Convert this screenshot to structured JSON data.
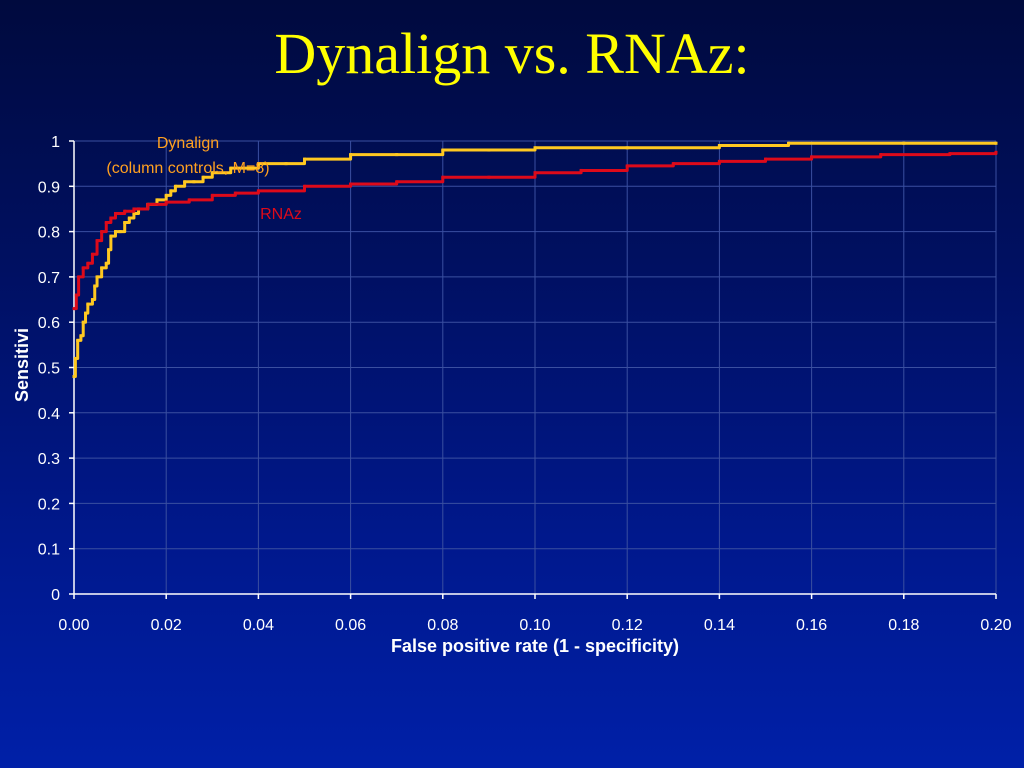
{
  "slide": {
    "title": "Dynalign vs. RNAz:"
  },
  "colors": {
    "background": "#00187a",
    "title": "#ffff00",
    "dynalign": "#ffc820",
    "rnaz": "#dd0a1a",
    "dynalign_label": "#ffa020",
    "grid": "#3a4fa0",
    "axis": "#ffffff"
  },
  "chart_data": {
    "type": "line",
    "xlabel": "False positive rate (1 - specificity)",
    "ylabel": "Sensitivi",
    "xlim": [
      0,
      0.2
    ],
    "ylim": [
      0,
      1
    ],
    "x_ticks": [
      "0.00",
      "0.02",
      "0.04",
      "0.06",
      "0.08",
      "0.10",
      "0.12",
      "0.14",
      "0.16",
      "0.18",
      "0.20"
    ],
    "y_ticks": [
      "0",
      "0.1",
      "0.2",
      "0.3",
      "0.4",
      "0.5",
      "0.6",
      "0.7",
      "0.8",
      "0.9",
      "1"
    ],
    "grid": true,
    "annotations": [
      {
        "series": "Dynalign",
        "lines": [
          "Dynalign",
          "(column controls, M=8)"
        ],
        "color": "#ffa020"
      },
      {
        "series": "RNAz",
        "lines": [
          "RNAz"
        ],
        "color": "#dd0a1a"
      }
    ],
    "series": [
      {
        "name": "Dynalign",
        "color": "#ffc820",
        "points": [
          [
            0.0,
            0.48
          ],
          [
            0.0003,
            0.52
          ],
          [
            0.0008,
            0.56
          ],
          [
            0.0015,
            0.57
          ],
          [
            0.002,
            0.6
          ],
          [
            0.0025,
            0.62
          ],
          [
            0.003,
            0.64
          ],
          [
            0.004,
            0.65
          ],
          [
            0.0045,
            0.68
          ],
          [
            0.005,
            0.7
          ],
          [
            0.006,
            0.72
          ],
          [
            0.007,
            0.73
          ],
          [
            0.0075,
            0.76
          ],
          [
            0.008,
            0.79
          ],
          [
            0.009,
            0.8
          ],
          [
            0.01,
            0.8
          ],
          [
            0.011,
            0.82
          ],
          [
            0.012,
            0.83
          ],
          [
            0.013,
            0.84
          ],
          [
            0.014,
            0.85
          ],
          [
            0.016,
            0.86
          ],
          [
            0.018,
            0.87
          ],
          [
            0.02,
            0.88
          ],
          [
            0.021,
            0.89
          ],
          [
            0.022,
            0.9
          ],
          [
            0.024,
            0.91
          ],
          [
            0.026,
            0.91
          ],
          [
            0.028,
            0.92
          ],
          [
            0.03,
            0.93
          ],
          [
            0.034,
            0.94
          ],
          [
            0.04,
            0.95
          ],
          [
            0.046,
            0.95
          ],
          [
            0.05,
            0.96
          ],
          [
            0.06,
            0.97
          ],
          [
            0.07,
            0.97
          ],
          [
            0.08,
            0.98
          ],
          [
            0.09,
            0.98
          ],
          [
            0.1,
            0.985
          ],
          [
            0.12,
            0.985
          ],
          [
            0.14,
            0.99
          ],
          [
            0.155,
            0.995
          ],
          [
            0.18,
            0.995
          ],
          [
            0.2,
            0.995
          ]
        ]
      },
      {
        "name": "RNAz",
        "color": "#dd0a1a",
        "points": [
          [
            0.0,
            0.63
          ],
          [
            0.0005,
            0.66
          ],
          [
            0.001,
            0.7
          ],
          [
            0.002,
            0.72
          ],
          [
            0.003,
            0.73
          ],
          [
            0.004,
            0.75
          ],
          [
            0.005,
            0.78
          ],
          [
            0.006,
            0.8
          ],
          [
            0.007,
            0.82
          ],
          [
            0.008,
            0.83
          ],
          [
            0.009,
            0.84
          ],
          [
            0.011,
            0.845
          ],
          [
            0.013,
            0.85
          ],
          [
            0.016,
            0.86
          ],
          [
            0.02,
            0.865
          ],
          [
            0.025,
            0.87
          ],
          [
            0.03,
            0.88
          ],
          [
            0.035,
            0.885
          ],
          [
            0.04,
            0.89
          ],
          [
            0.05,
            0.9
          ],
          [
            0.06,
            0.905
          ],
          [
            0.07,
            0.91
          ],
          [
            0.08,
            0.92
          ],
          [
            0.09,
            0.92
          ],
          [
            0.1,
            0.93
          ],
          [
            0.11,
            0.935
          ],
          [
            0.12,
            0.945
          ],
          [
            0.13,
            0.95
          ],
          [
            0.14,
            0.955
          ],
          [
            0.15,
            0.96
          ],
          [
            0.16,
            0.965
          ],
          [
            0.175,
            0.97
          ],
          [
            0.19,
            0.972
          ],
          [
            0.2,
            0.975
          ]
        ]
      }
    ]
  }
}
